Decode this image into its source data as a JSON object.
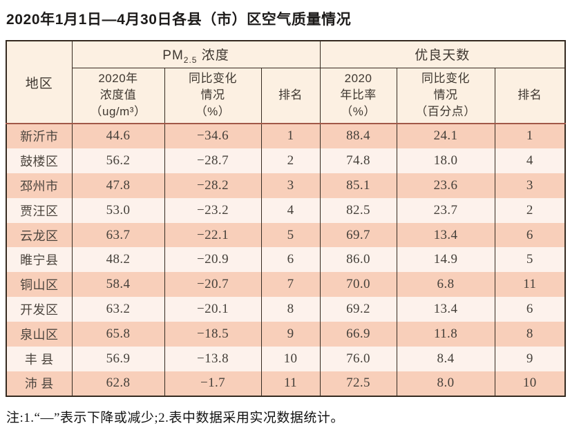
{
  "page": {
    "title": "2020年1月1日—4月30日各县（市）区空气质量情况",
    "footnote": "注:1.“—”表示下降或减少;2.表中数据采用实况数据统计。"
  },
  "colors": {
    "row_odd_bg": "#f8cfba",
    "row_even_bg": "#fdf2ec",
    "header_bg": "#fcf0e2",
    "border_dark": "#34291f",
    "header_separator": "#a15848"
  },
  "table": {
    "region_header": "地区",
    "groups": {
      "pm25": {
        "prefix": "PM",
        "sub": "2.5",
        "suffix": " 浓度"
      },
      "good_days": "优良天数"
    },
    "sub_headers": {
      "pm_value": "2020年\n浓度值\n（ug/m³）",
      "pm_change": "同比变化\n情况\n（%）",
      "pm_rank": "排名",
      "good_ratio": "2020\n年比率\n（%）",
      "ratio_change": "同比变化\n情况\n（百分点）",
      "ratio_rank": "排名"
    },
    "columns": [
      "region",
      "pm_value",
      "pm_change",
      "pm_rank",
      "good_ratio",
      "ratio_change",
      "ratio_rank"
    ],
    "rows": [
      {
        "region": "新沂市",
        "pm_value": "44.6",
        "pm_change": "−34.6",
        "pm_rank": "1",
        "good_ratio": "88.4",
        "ratio_change": "24.1",
        "ratio_rank": "1"
      },
      {
        "region": "鼓楼区",
        "pm_value": "56.2",
        "pm_change": "−28.7",
        "pm_rank": "2",
        "good_ratio": "74.8",
        "ratio_change": "18.0",
        "ratio_rank": "4"
      },
      {
        "region": "邳州市",
        "pm_value": "47.8",
        "pm_change": "−28.2",
        "pm_rank": "3",
        "good_ratio": "85.1",
        "ratio_change": "23.6",
        "ratio_rank": "3"
      },
      {
        "region": "贾汪区",
        "pm_value": "53.0",
        "pm_change": "−23.2",
        "pm_rank": "4",
        "good_ratio": "82.5",
        "ratio_change": "23.7",
        "ratio_rank": "2"
      },
      {
        "region": "云龙区",
        "pm_value": "63.7",
        "pm_change": "−22.1",
        "pm_rank": "5",
        "good_ratio": "69.7",
        "ratio_change": "13.4",
        "ratio_rank": "6"
      },
      {
        "region": "睢宁县",
        "pm_value": "48.2",
        "pm_change": "−20.9",
        "pm_rank": "6",
        "good_ratio": "86.0",
        "ratio_change": "14.9",
        "ratio_rank": "5"
      },
      {
        "region": "铜山区",
        "pm_value": "58.4",
        "pm_change": "−20.7",
        "pm_rank": "7",
        "good_ratio": "70.0",
        "ratio_change": "6.8",
        "ratio_rank": "11"
      },
      {
        "region": "开发区",
        "pm_value": "63.2",
        "pm_change": "−20.1",
        "pm_rank": "8",
        "good_ratio": "69.2",
        "ratio_change": "13.4",
        "ratio_rank": "6"
      },
      {
        "region": "泉山区",
        "pm_value": "65.8",
        "pm_change": "−18.5",
        "pm_rank": "9",
        "good_ratio": "66.9",
        "ratio_change": "11.8",
        "ratio_rank": "8"
      },
      {
        "region": "丰 县",
        "pm_value": "56.9",
        "pm_change": "−13.8",
        "pm_rank": "10",
        "good_ratio": "76.0",
        "ratio_change": "8.4",
        "ratio_rank": "9"
      },
      {
        "region": "沛 县",
        "pm_value": "62.8",
        "pm_change": "−1.7",
        "pm_rank": "11",
        "good_ratio": "72.5",
        "ratio_change": "8.0",
        "ratio_rank": "10"
      }
    ]
  }
}
